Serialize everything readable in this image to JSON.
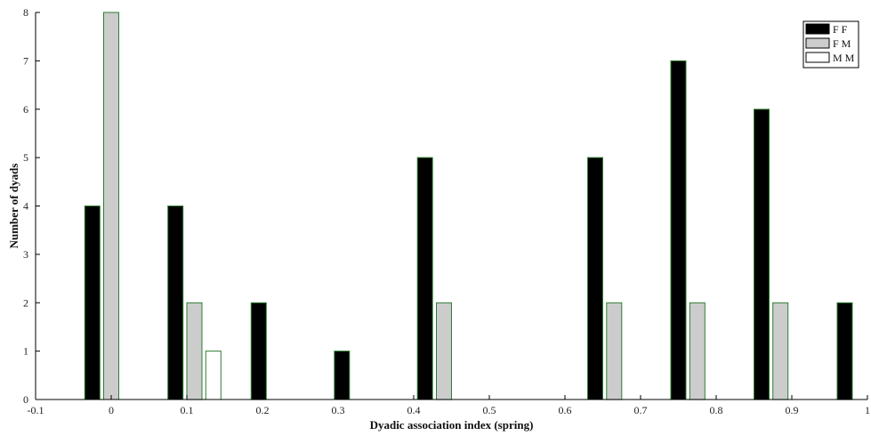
{
  "chart_data": {
    "type": "bar",
    "title": "",
    "xlabel": "Dyadic association index (spring)",
    "ylabel": "Number of dyads",
    "xlim": [
      -0.1,
      1
    ],
    "ylim": [
      0,
      8
    ],
    "xticks": [
      -0.1,
      0,
      0.1,
      0.2,
      0.3,
      0.4,
      0.5,
      0.6,
      0.7,
      0.8,
      0.9,
      1
    ],
    "xtick_labels": [
      "-0.1",
      "0",
      "0.1",
      "0.2",
      "0.3",
      "0.4",
      "0.5",
      "0.6",
      "0.7",
      "0.8",
      "0.9",
      "1"
    ],
    "yticks": [
      0,
      1,
      2,
      3,
      4,
      5,
      6,
      7,
      8
    ],
    "ytick_labels": [
      "0",
      "1",
      "2",
      "3",
      "4",
      "5",
      "6",
      "7",
      "8"
    ],
    "grid": false,
    "legend_position": "top-right",
    "series": [
      {
        "name": "F F",
        "fill": "#000000",
        "stroke": "#2e7d32",
        "x": [
          -0.025,
          0.085,
          0.195,
          0.305,
          0.415,
          0.64,
          0.75,
          0.86,
          0.97
        ],
        "values": [
          4,
          4,
          2,
          1,
          5,
          5,
          7,
          6,
          2
        ]
      },
      {
        "name": "F M",
        "fill": "#cccccc",
        "stroke": "#2e7d32",
        "x": [
          0,
          0.11,
          0.44,
          0.665,
          0.775,
          0.885
        ],
        "values": [
          8,
          2,
          2,
          2,
          2,
          2
        ]
      },
      {
        "name": "M M",
        "fill": "#ffffff",
        "stroke": "#2e7d32",
        "x": [
          0.135
        ],
        "values": [
          1
        ]
      }
    ]
  }
}
